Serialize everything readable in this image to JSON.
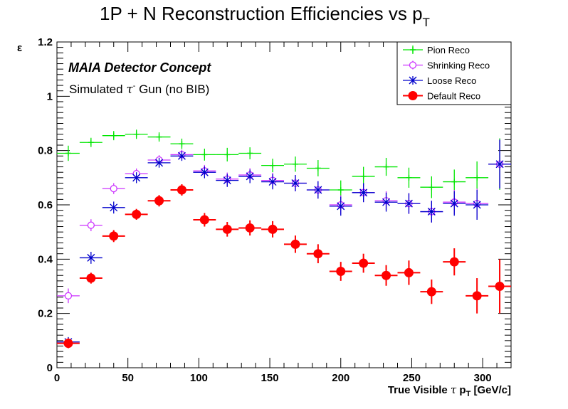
{
  "chart_data": {
    "type": "scatter",
    "title": {
      "main": "1P + N Reconstruction Efficiencies vs p",
      "sub": "T"
    },
    "xlabel": {
      "pre": "True Visible ",
      "tau": "τ",
      "p": " p",
      "sub": "T",
      "post": " [GeV/c]"
    },
    "ylabel": "ε",
    "xlim": [
      0,
      320
    ],
    "ylim": [
      0,
      1.2
    ],
    "xticks": [
      0,
      50,
      100,
      150,
      200,
      250,
      300
    ],
    "yticks": [
      0,
      0.2,
      0.4,
      0.6,
      0.8,
      1,
      1.2
    ],
    "ytick_labels": [
      "0",
      "0.2",
      "0.4",
      "0.6",
      "0.8",
      "1",
      "1.2"
    ],
    "annotations": {
      "detector": "MAIA Detector Concept",
      "sample_pre": "Simulated ",
      "sample_tau": "τ",
      "sample_sup": "-",
      "sample_post": " Gun (no BIB)"
    },
    "bin_half_width": 8,
    "x": [
      8,
      24,
      40,
      56,
      72,
      88,
      104,
      120,
      136,
      152,
      168,
      184,
      200,
      216,
      232,
      248,
      264,
      280,
      296,
      312
    ],
    "series": [
      {
        "name": "Pion Reco",
        "color": "#00e600",
        "marker": "plus",
        "values": [
          0.79,
          0.83,
          0.855,
          0.86,
          0.85,
          0.825,
          0.785,
          0.785,
          0.79,
          0.745,
          0.75,
          0.735,
          0.655,
          0.705,
          0.74,
          0.7,
          0.665,
          0.685,
          0.7,
          0.75
        ],
        "errors": [
          0.028,
          0.017,
          0.017,
          0.017,
          0.017,
          0.019,
          0.022,
          0.025,
          0.022,
          0.025,
          0.028,
          0.03,
          0.035,
          0.035,
          0.033,
          0.037,
          0.04,
          0.045,
          0.06,
          0.095
        ]
      },
      {
        "name": "Shrinking Reco",
        "color": "#cc33ff",
        "marker": "circle",
        "values": [
          0.265,
          0.525,
          0.66,
          0.715,
          0.765,
          0.785,
          0.725,
          0.695,
          0.71,
          0.69,
          0.68,
          0.655,
          0.6,
          0.645,
          0.615,
          0.605,
          0.575,
          0.61,
          0.605,
          0.75
        ],
        "errors": [
          0.027,
          0.022,
          0.02,
          0.019,
          0.018,
          0.018,
          0.022,
          0.024,
          0.025,
          0.028,
          0.03,
          0.032,
          0.035,
          0.035,
          0.035,
          0.038,
          0.04,
          0.045,
          0.055,
          0.09
        ]
      },
      {
        "name": "Loose Reco",
        "color": "#0000cc",
        "marker": "cross",
        "values": [
          0.095,
          0.405,
          0.59,
          0.7,
          0.755,
          0.78,
          0.72,
          0.69,
          0.705,
          0.685,
          0.68,
          0.655,
          0.595,
          0.645,
          0.61,
          0.605,
          0.575,
          0.605,
          0.6,
          0.75
        ],
        "errors": [
          0.018,
          0.022,
          0.022,
          0.02,
          0.018,
          0.018,
          0.022,
          0.024,
          0.025,
          0.028,
          0.03,
          0.032,
          0.035,
          0.035,
          0.035,
          0.038,
          0.04,
          0.045,
          0.055,
          0.09
        ]
      },
      {
        "name": "Default Reco",
        "color": "#ff0000",
        "marker": "dot",
        "values": [
          0.09,
          0.33,
          0.485,
          0.565,
          0.615,
          0.655,
          0.545,
          0.51,
          0.515,
          0.51,
          0.455,
          0.42,
          0.355,
          0.385,
          0.34,
          0.35,
          0.28,
          0.39,
          0.265,
          0.3
        ],
        "errors": [
          0.018,
          0.02,
          0.022,
          0.02,
          0.021,
          0.021,
          0.025,
          0.027,
          0.028,
          0.03,
          0.032,
          0.035,
          0.035,
          0.035,
          0.038,
          0.045,
          0.045,
          0.05,
          0.065,
          0.1
        ]
      }
    ],
    "legend": {
      "position": "top-right",
      "order": [
        "Pion Reco",
        "Shrinking Reco",
        "Loose Reco",
        "Default Reco"
      ]
    }
  }
}
